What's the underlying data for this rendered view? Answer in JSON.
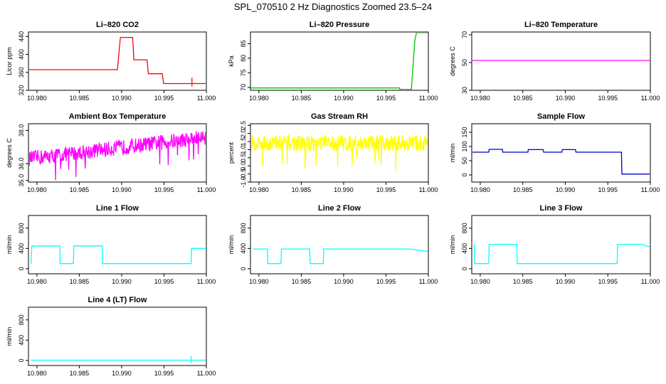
{
  "page": {
    "title": "SPL_070510  2 Hz Diagnostics Zoomed 23.5–24"
  },
  "chart_data": [
    {
      "type": "line",
      "title": "Li–820 CO2",
      "ylabel": "Licor ppm",
      "color": "#ff0000",
      "xlim": [
        10.979,
        11.0
      ],
      "ylim": [
        320,
        450
      ],
      "xticks": [
        "10.980",
        "10.985",
        "10.990",
        "10.995",
        "11.000"
      ],
      "yticks": [
        "320",
        "360",
        "400",
        "440"
      ],
      "series": [
        {
          "x": [
            10.979,
            10.9895,
            10.98985,
            10.9913,
            10.99145,
            10.993,
            10.99315,
            10.9948,
            10.99495,
            11.0
          ],
          "y": [
            366,
            366,
            438,
            438,
            388,
            388,
            357,
            357,
            335,
            335
          ]
        }
      ],
      "annotations": [
        {
          "x": 10.9983,
          "y": 348
        }
      ]
    },
    {
      "type": "line",
      "title": "Li–820 Pressure",
      "ylabel": "kPa",
      "color": "#00c000",
      "xlim": [
        10.979,
        11.0
      ],
      "ylim": [
        69,
        89
      ],
      "xticks": [
        "10.980",
        "10.985",
        "10.990",
        "10.995",
        "11.000"
      ],
      "yticks": [
        "70",
        "75",
        "80",
        "85"
      ],
      "series": [
        {
          "x": [
            10.979,
            10.9966,
            10.99665,
            10.998,
            10.9982,
            10.9984,
            10.9986,
            11.0
          ],
          "y": [
            69.8,
            69.8,
            69.3,
            69.3,
            78.0,
            86.0,
            88.8,
            88.8
          ]
        }
      ]
    },
    {
      "type": "line",
      "title": "Li–820 Temperature",
      "ylabel": "degrees C",
      "color": "#ff00ff",
      "xlim": [
        10.979,
        11.0
      ],
      "ylim": [
        30,
        72
      ],
      "xticks": [
        "10.980",
        "10.985",
        "10.990",
        "10.995",
        "11.000"
      ],
      "yticks": [
        "30",
        "50",
        "70"
      ],
      "series": [
        {
          "x": [
            10.979,
            11.0
          ],
          "y": [
            51.5,
            51.5
          ]
        }
      ]
    },
    {
      "type": "line",
      "title": "Ambient Box Temperature",
      "ylabel": "degrees C",
      "color": "#ff00ff",
      "xlim": [
        10.979,
        11.0
      ],
      "ylim": [
        34.9,
        38.4
      ],
      "xticks": [
        "10.980",
        "10.985",
        "10.990",
        "10.995",
        "11.000"
      ],
      "yticks": [
        "35.0",
        "36.0",
        "38.0"
      ],
      "series": [
        {
          "x": [
            10.979,
            11.0
          ],
          "y": [
            36.3,
            37.6
          ],
          "noise": 0.9
        }
      ]
    },
    {
      "type": "line",
      "title": "Gas Stream RH",
      "ylabel": "percent",
      "color": "#ffff00",
      "xlim": [
        10.979,
        11.0
      ],
      "ylim": [
        -1.0,
        2.6
      ],
      "xticks": [
        "10.980",
        "10.985",
        "10.990",
        "10.995",
        "11.000"
      ],
      "yticks": [
        "-1.0",
        "-0.5",
        "0.0",
        "0.5",
        "1.0",
        "1.5",
        "2.0",
        "2.5"
      ],
      "series": [
        {
          "x": [
            10.979,
            11.0
          ],
          "y": [
            1.4,
            1.4
          ],
          "noise": 1.0
        }
      ]
    },
    {
      "type": "line",
      "title": "Sample Flow",
      "ylabel": "ml/min",
      "color": "#0000c0",
      "xlim": [
        10.979,
        11.0
      ],
      "ylim": [
        -25,
        180
      ],
      "xticks": [
        "10.980",
        "10.985",
        "10.990",
        "10.995",
        "11.000"
      ],
      "yticks": [
        "0",
        "50",
        "100",
        "150"
      ],
      "series": [
        {
          "x": [
            10.979,
            10.981,
            10.98105,
            10.9826,
            10.98265,
            10.9856,
            10.98565,
            10.9874,
            10.98745,
            10.9896,
            10.98965,
            10.9912,
            10.99125,
            10.9966,
            10.99665,
            11.0
          ],
          "y": [
            80,
            80,
            90,
            90,
            80,
            80,
            89,
            89,
            80,
            80,
            89,
            89,
            80,
            80,
            3,
            3
          ]
        }
      ]
    },
    {
      "type": "line",
      "title": "Line 1 Flow",
      "ylabel": "ml/min",
      "color": "#00ffff",
      "xlim": [
        10.979,
        11.0
      ],
      "ylim": [
        -100,
        1050
      ],
      "xticks": [
        "10.980",
        "10.985",
        "10.990",
        "10.995",
        "11.000"
      ],
      "yticks": [
        "0",
        "400",
        "800"
      ],
      "series": [
        {
          "x": [
            10.9793,
            10.9794,
            10.9827,
            10.98275,
            10.9843,
            10.98435,
            10.9877,
            10.98775,
            10.9982,
            10.99825,
            11.0
          ],
          "y": [
            100,
            450,
            450,
            100,
            100,
            450,
            450,
            100,
            100,
            400,
            400
          ]
        }
      ]
    },
    {
      "type": "line",
      "title": "Line 2 Flow",
      "ylabel": "ml/min",
      "color": "#00ffff",
      "xlim": [
        10.979,
        11.0
      ],
      "ylim": [
        -100,
        1050
      ],
      "xticks": [
        "10.980",
        "10.985",
        "10.990",
        "10.995",
        "11.000"
      ],
      "yticks": [
        "0",
        "400",
        "800"
      ],
      "series": [
        {
          "x": [
            10.9793,
            10.981,
            10.98105,
            10.9826,
            10.98265,
            10.986,
            10.98605,
            10.9876,
            10.98765,
            10.9978,
            11.0
          ],
          "y": [
            390,
            390,
            100,
            100,
            390,
            390,
            100,
            100,
            390,
            390,
            340
          ]
        }
      ]
    },
    {
      "type": "line",
      "title": "Line 3 Flow",
      "ylabel": "ml/min",
      "color": "#00ffff",
      "xlim": [
        10.979,
        11.0
      ],
      "ylim": [
        -100,
        1050
      ],
      "xticks": [
        "10.980",
        "10.985",
        "10.990",
        "10.995",
        "11.000"
      ],
      "yticks": [
        "0",
        "400",
        "800"
      ],
      "series": [
        {
          "x": [
            10.9793,
            10.97935,
            10.981,
            10.98105,
            10.9843,
            10.98435,
            10.9961,
            10.99615,
            10.999,
            11.0
          ],
          "y": [
            480,
            100,
            100,
            480,
            480,
            100,
            100,
            480,
            480,
            430
          ]
        }
      ]
    },
    {
      "type": "line",
      "title": "Line 4 (LT) Flow",
      "ylabel": "ml/min",
      "color": "#00ffff",
      "xlim": [
        10.979,
        11.0
      ],
      "ylim": [
        -100,
        1050
      ],
      "xticks": [
        "10.980",
        "10.985",
        "10.990",
        "10.995",
        "11.000"
      ],
      "yticks": [
        "0",
        "400",
        "800"
      ],
      "series": [
        {
          "x": [
            10.9793,
            11.0
          ],
          "y": [
            5,
            5
          ]
        }
      ],
      "annotations": [
        {
          "x": 10.9982,
          "y": 90
        }
      ]
    }
  ]
}
